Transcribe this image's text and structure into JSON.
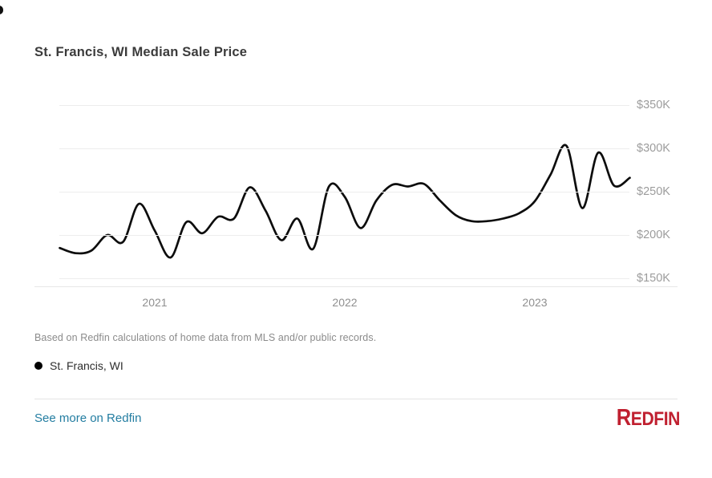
{
  "header": {
    "title": "St. Francis, WI Median Sale Price"
  },
  "chart_data": {
    "type": "line",
    "title": "St. Francis, WI Median Sale Price",
    "grid": "horizontal-only",
    "legend_position": "below-chart-left",
    "x": [
      "Jul 2020",
      "Aug 2020",
      "Sep 2020",
      "Oct 2020",
      "Nov 2020",
      "Dec 2020",
      "Jan 2021",
      "Feb 2021",
      "Mar 2021",
      "Apr 2021",
      "May 2021",
      "Jun 2021",
      "Jul 2021",
      "Aug 2021",
      "Sep 2021",
      "Oct 2021",
      "Nov 2021",
      "Dec 2021",
      "Jan 2022",
      "Feb 2022",
      "Mar 2022",
      "Apr 2022",
      "May 2022",
      "Jun 2022",
      "Jul 2022",
      "Aug 2022",
      "Sep 2022",
      "Oct 2022",
      "Nov 2022",
      "Dec 2022",
      "Jan 2023",
      "Feb 2023",
      "Mar 2023",
      "Apr 2023",
      "May 2023",
      "Jun 2023",
      "Jul 2023"
    ],
    "series": [
      {
        "name": "St. Francis, WI",
        "color": "#0d0d0d",
        "unit": "USD thousands",
        "values_usd_k": [
          185,
          179,
          182,
          200,
          192,
          236,
          205,
          174,
          215,
          202,
          221,
          219,
          255,
          228,
          194,
          219,
          184,
          256,
          244,
          208,
          240,
          258,
          256,
          259,
          240,
          223,
          216,
          216,
          219,
          225,
          239,
          270,
          303,
          231,
          295,
          257,
          266
        ]
      }
    ],
    "x_axis": {
      "ticks": [
        {
          "label": "2021",
          "month_index": 6
        },
        {
          "label": "2022",
          "month_index": 18
        },
        {
          "label": "2023",
          "month_index": 30
        }
      ]
    },
    "y_axis": {
      "unit": "USD thousands",
      "ticks": [
        {
          "label": "$350K",
          "value": 350
        },
        {
          "label": "$300K",
          "value": 300
        },
        {
          "label": "$250K",
          "value": 250
        },
        {
          "label": "$200K",
          "value": 200
        },
        {
          "label": "$150K",
          "value": 150
        }
      ],
      "ylim_k": [
        141,
        350
      ]
    }
  },
  "footnote": {
    "text": "Based on Redfin calculations of home data from MLS and/or public records."
  },
  "legend": {
    "items": [
      {
        "label": "St. Francis, WI",
        "marker": "dot",
        "marker_color": "#000000"
      }
    ]
  },
  "footer": {
    "link_text": "See more on Redfin",
    "link_color": "#237da1",
    "logo_first_letter": "R",
    "logo_rest": "EDFIN",
    "logo_color": "#c02030"
  }
}
